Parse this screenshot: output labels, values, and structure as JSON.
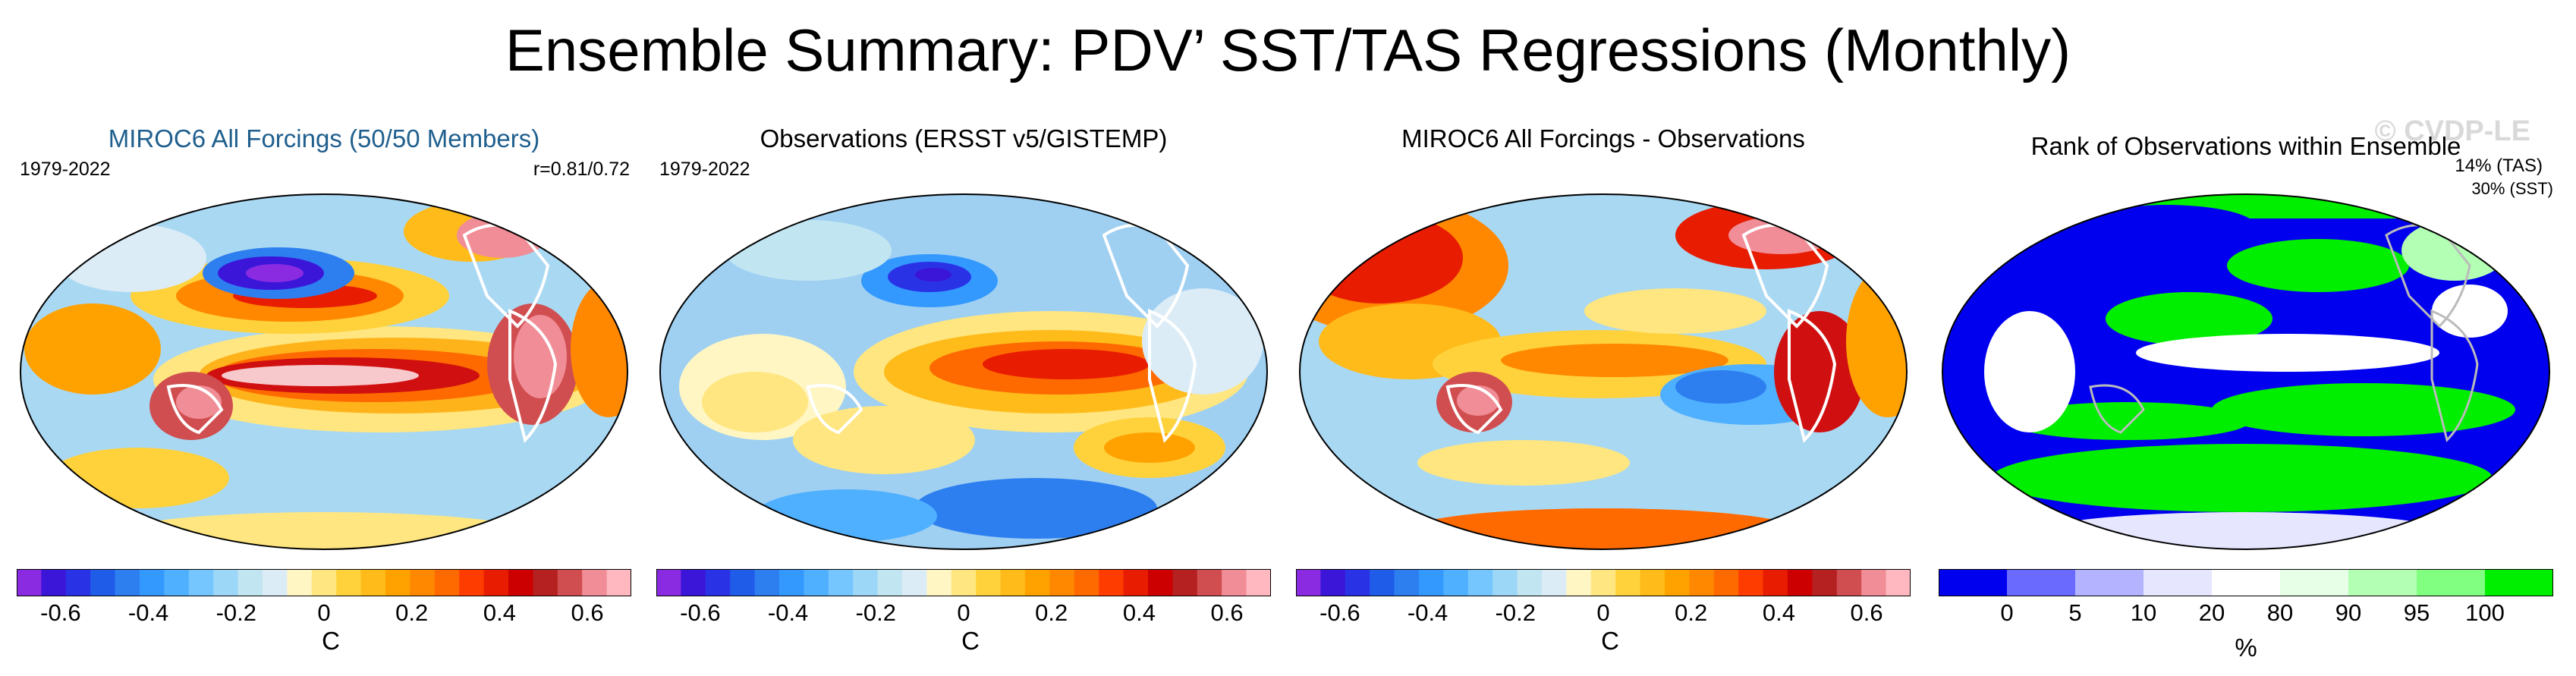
{
  "figure": {
    "title": "Ensemble Summary: PDV’ SST/TAS Regressions (Monthly)",
    "watermark": "© CVDP-LE"
  },
  "panels": [
    {
      "title": "MIROC6 All Forcings (50/50 Members)",
      "title_color": "#1f5f8e",
      "period": "1979-2022",
      "stat": "r=0.81/0.72",
      "map_pattern": "model PDV regression: strong warm equatorial tongue, cold North Pacific",
      "colorbar": "temp"
    },
    {
      "title": "Observations (ERSST v5/GISTEMP)",
      "period": "1979-2022",
      "stat": "",
      "map_pattern": "observed PDV regression: warm eastern Pacific horseshoe, cold North Pacific",
      "colorbar": "temp"
    },
    {
      "title": "MIROC6 All Forcings - Observations",
      "period": "",
      "stat": "",
      "map_pattern": "difference: warm over land and high latitudes, cool eastern Pacific",
      "colorbar": "temp"
    },
    {
      "title": "Rank of Observations within Ensemble",
      "period": "",
      "stat": "",
      "rank_tas": "14% (TAS)",
      "rank_sst": "30% (SST)",
      "map_pattern": "rank percentile: mostly low (blue) with high (green) bands",
      "colorbar": "rank"
    }
  ],
  "colorbars": {
    "temp": {
      "unit": "C",
      "tick_labels": [
        "-0.6",
        "-0.4",
        "-0.2",
        "0",
        "0.2",
        "0.4",
        "0.6"
      ],
      "tick_values": [
        -0.6,
        -0.4,
        -0.2,
        0,
        0.2,
        0.4,
        0.6
      ],
      "range": [
        -0.7,
        0.7
      ],
      "colors": [
        "#8a2be2",
        "#3b16d9",
        "#2a32e6",
        "#1f5de8",
        "#2d7ff0",
        "#3399ff",
        "#4fb0ff",
        "#75c6ff",
        "#9cd7f7",
        "#c2e5f2",
        "#dcecf6",
        "#fff6c4",
        "#ffe680",
        "#ffd23c",
        "#ffbb1a",
        "#ffa200",
        "#ff8800",
        "#ff6a00",
        "#ff3c00",
        "#e81c00",
        "#cc0000",
        "#b52020",
        "#d04e50",
        "#f08d96",
        "#ffb8c0"
      ]
    },
    "rank": {
      "unit": "%",
      "tick_labels": [
        "0",
        "5",
        "10",
        "20",
        "80",
        "90",
        "95",
        "100"
      ],
      "tick_values": [
        0,
        5,
        10,
        20,
        80,
        90,
        95,
        100
      ],
      "colors": [
        "#0000ee",
        "#6a6aff",
        "#b3b3ff",
        "#e6e6ff",
        "#ffffff",
        "#e6ffe6",
        "#b3ffb3",
        "#80ff80",
        "#00ee00"
      ]
    }
  }
}
